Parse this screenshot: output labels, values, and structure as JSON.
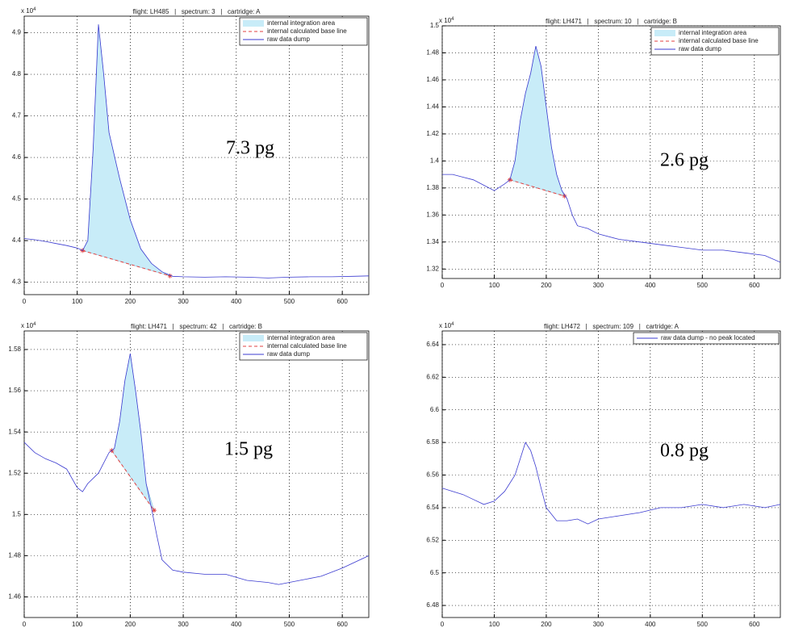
{
  "chart_data": [
    {
      "type": "line",
      "title": "flight: LH485   |   spectrum: 3   |   cartridge: A",
      "y_scale_label": "x 10",
      "y_scale_exponent": "4",
      "annotation": "7.3 pg",
      "xlim": [
        0,
        650
      ],
      "xticks": [
        0,
        100,
        200,
        300,
        400,
        500,
        600
      ],
      "ylim": [
        4.27,
        4.94
      ],
      "yticks": [
        4.3,
        4.4,
        4.5,
        4.6,
        4.7,
        4.8,
        4.9
      ],
      "grid": true,
      "legend": "upper right",
      "series": [
        {
          "name": "internal integration area",
          "mark": "area",
          "color": "#c8ecf8",
          "x": [
            110,
            120,
            130,
            140,
            150,
            160,
            180,
            200,
            220,
            240,
            260,
            275
          ],
          "values": [
            4.376,
            4.4,
            4.62,
            4.92,
            4.8,
            4.66,
            4.55,
            4.45,
            4.38,
            4.345,
            4.325,
            4.315
          ]
        },
        {
          "name": "internal calculated base line",
          "mark": "dashed",
          "color": "#e04040",
          "x": [
            110,
            275
          ],
          "values": [
            4.376,
            4.315
          ]
        },
        {
          "name": "raw data dump",
          "mark": "line",
          "color": "#3b3bd0",
          "x": [
            0,
            20,
            40,
            60,
            80,
            100,
            110,
            120,
            130,
            140,
            150,
            160,
            180,
            200,
            220,
            240,
            260,
            280,
            300,
            340,
            380,
            420,
            460,
            500,
            540,
            580,
            620,
            650
          ],
          "values": [
            4.405,
            4.402,
            4.398,
            4.393,
            4.388,
            4.382,
            4.376,
            4.4,
            4.62,
            4.92,
            4.8,
            4.66,
            4.55,
            4.45,
            4.38,
            4.345,
            4.325,
            4.314,
            4.313,
            4.312,
            4.313,
            4.312,
            4.31,
            4.312,
            4.313,
            4.313,
            4.314,
            4.315
          ]
        }
      ]
    },
    {
      "type": "line",
      "title": "flight: LH471   |   spectrum: 10   |   cartridge: B",
      "y_scale_label": "x 10",
      "y_scale_exponent": "4",
      "annotation": "2.6 pg",
      "xlim": [
        0,
        650
      ],
      "xticks": [
        0,
        100,
        200,
        300,
        400,
        500,
        600
      ],
      "ylim": [
        1.313,
        1.5
      ],
      "yticks": [
        1.32,
        1.34,
        1.36,
        1.38,
        1.4,
        1.42,
        1.44,
        1.46,
        1.48,
        1.5
      ],
      "grid": true,
      "legend": "upper right",
      "series": [
        {
          "name": "internal integration area",
          "mark": "area",
          "color": "#c8ecf8",
          "x": [
            130,
            140,
            150,
            160,
            170,
            180,
            190,
            200,
            210,
            220,
            230,
            235
          ],
          "values": [
            1.386,
            1.4,
            1.43,
            1.45,
            1.465,
            1.485,
            1.47,
            1.44,
            1.41,
            1.39,
            1.378,
            1.374
          ]
        },
        {
          "name": "internal calculated base line",
          "mark": "dashed",
          "color": "#e04040",
          "x": [
            130,
            235
          ],
          "values": [
            1.386,
            1.374
          ]
        },
        {
          "name": "raw data dump",
          "mark": "line",
          "color": "#3b3bd0",
          "x": [
            0,
            20,
            40,
            60,
            80,
            100,
            120,
            130,
            140,
            150,
            160,
            170,
            180,
            190,
            200,
            210,
            220,
            230,
            240,
            250,
            260,
            280,
            300,
            340,
            380,
            420,
            460,
            500,
            540,
            580,
            620,
            650
          ],
          "values": [
            1.39,
            1.39,
            1.388,
            1.386,
            1.382,
            1.378,
            1.383,
            1.386,
            1.4,
            1.43,
            1.45,
            1.465,
            1.485,
            1.47,
            1.44,
            1.41,
            1.39,
            1.378,
            1.372,
            1.36,
            1.352,
            1.35,
            1.346,
            1.342,
            1.34,
            1.338,
            1.336,
            1.334,
            1.334,
            1.332,
            1.33,
            1.325
          ]
        }
      ]
    },
    {
      "type": "line",
      "title": "flight: LH471   |   spectrum: 42   |   cartridge: B",
      "y_scale_label": "x 10",
      "y_scale_exponent": "4",
      "annotation": "1.5 pg",
      "xlim": [
        0,
        650
      ],
      "xticks": [
        0,
        100,
        200,
        300,
        400,
        500,
        600
      ],
      "ylim": [
        1.45,
        1.589
      ],
      "yticks": [
        1.46,
        1.48,
        1.5,
        1.52,
        1.54,
        1.56,
        1.58
      ],
      "grid": true,
      "legend": "upper right",
      "series": [
        {
          "name": "internal integration area",
          "mark": "area",
          "color": "#c8ecf8",
          "x": [
            165,
            170,
            180,
            190,
            200,
            210,
            220,
            230,
            245
          ],
          "values": [
            1.531,
            1.532,
            1.545,
            1.565,
            1.578,
            1.56,
            1.54,
            1.515,
            1.502
          ]
        },
        {
          "name": "internal calculated base line",
          "mark": "dashed",
          "color": "#e04040",
          "x": [
            165,
            245
          ],
          "values": [
            1.531,
            1.502
          ]
        },
        {
          "name": "raw data dump",
          "mark": "line",
          "color": "#3b3bd0",
          "x": [
            0,
            20,
            40,
            60,
            80,
            100,
            110,
            120,
            140,
            160,
            170,
            180,
            190,
            200,
            210,
            220,
            230,
            240,
            250,
            260,
            280,
            300,
            340,
            380,
            420,
            460,
            480,
            520,
            560,
            600,
            650
          ],
          "values": [
            1.535,
            1.53,
            1.527,
            1.525,
            1.522,
            1.513,
            1.511,
            1.515,
            1.52,
            1.53,
            1.532,
            1.545,
            1.565,
            1.578,
            1.56,
            1.54,
            1.515,
            1.503,
            1.49,
            1.478,
            1.473,
            1.472,
            1.471,
            1.471,
            1.468,
            1.467,
            1.466,
            1.468,
            1.47,
            1.474,
            1.48
          ]
        }
      ]
    },
    {
      "type": "line",
      "title": "flight: LH472   |   spectrum: 109   |   cartridge: A",
      "y_scale_label": "x 10",
      "y_scale_exponent": "4",
      "annotation": "0.8 pg",
      "xlim": [
        0,
        650
      ],
      "xticks": [
        0,
        100,
        200,
        300,
        400,
        500,
        600
      ],
      "ylim": [
        6.4726,
        6.6484
      ],
      "yticks": [
        6.48,
        6.5,
        6.52,
        6.54,
        6.56,
        6.58,
        6.6,
        6.62,
        6.64
      ],
      "grid": true,
      "legend": "upper right",
      "series": [
        {
          "name": "raw data dump - no peak located",
          "mark": "line",
          "color": "#3b3bd0",
          "x": [
            0,
            20,
            40,
            60,
            80,
            100,
            120,
            140,
            150,
            160,
            170,
            180,
            190,
            200,
            220,
            240,
            260,
            280,
            300,
            340,
            380,
            420,
            460,
            500,
            540,
            580,
            620,
            650
          ],
          "values": [
            6.552,
            6.55,
            6.548,
            6.545,
            6.542,
            6.544,
            6.55,
            6.56,
            6.57,
            6.58,
            6.575,
            6.565,
            6.552,
            6.54,
            6.532,
            6.532,
            6.533,
            6.53,
            6.533,
            6.535,
            6.537,
            6.54,
            6.54,
            6.542,
            6.54,
            6.542,
            6.54,
            6.542
          ]
        }
      ]
    }
  ]
}
